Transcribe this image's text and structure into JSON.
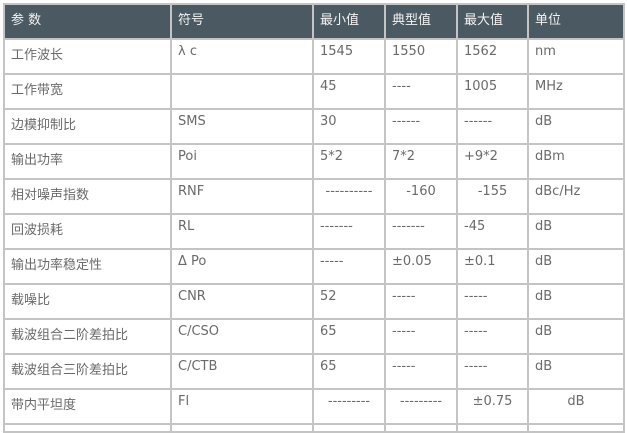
{
  "header": [
    "参 数",
    "符号",
    "最小值",
    "典型值",
    "最大值",
    "单位"
  ],
  "rows": [
    [
      "工作波长",
      "λ c",
      "1545",
      "1550",
      "1562",
      "nm"
    ],
    [
      "工作带宽",
      "",
      "45",
      "----",
      "1005",
      "MHz"
    ],
    [
      "边模抑制比",
      "SMS",
      "30",
      "------",
      "------",
      "dB"
    ],
    [
      "输出功率",
      "Poi",
      "5*2",
      "7*2",
      "+9*2",
      "dBm"
    ],
    [
      "相对噪声指数",
      "RNF",
      "----------",
      "-160",
      "-155",
      "dBc/Hz"
    ],
    [
      "回波损耗",
      "RL",
      "-------",
      "-------",
      "-45",
      "dB"
    ],
    [
      "输出功率稳定性",
      "Δ Po",
      "-----",
      "±0.05",
      "±0.1",
      "dB"
    ],
    [
      "载噪比",
      "CNR",
      "52",
      "-----",
      "-----",
      "dB"
    ],
    [
      "载波组合二阶差拍比",
      "C/CSO",
      "65",
      "-----",
      "-----",
      "dB"
    ],
    [
      "载波组合三阶差拍比",
      "C/CTB",
      "65",
      "-----",
      "-----",
      "dB"
    ],
    [
      "带内平坦度",
      "Fl",
      "---------",
      "---------",
      "±0.75",
      "dB"
    ]
  ]
}
